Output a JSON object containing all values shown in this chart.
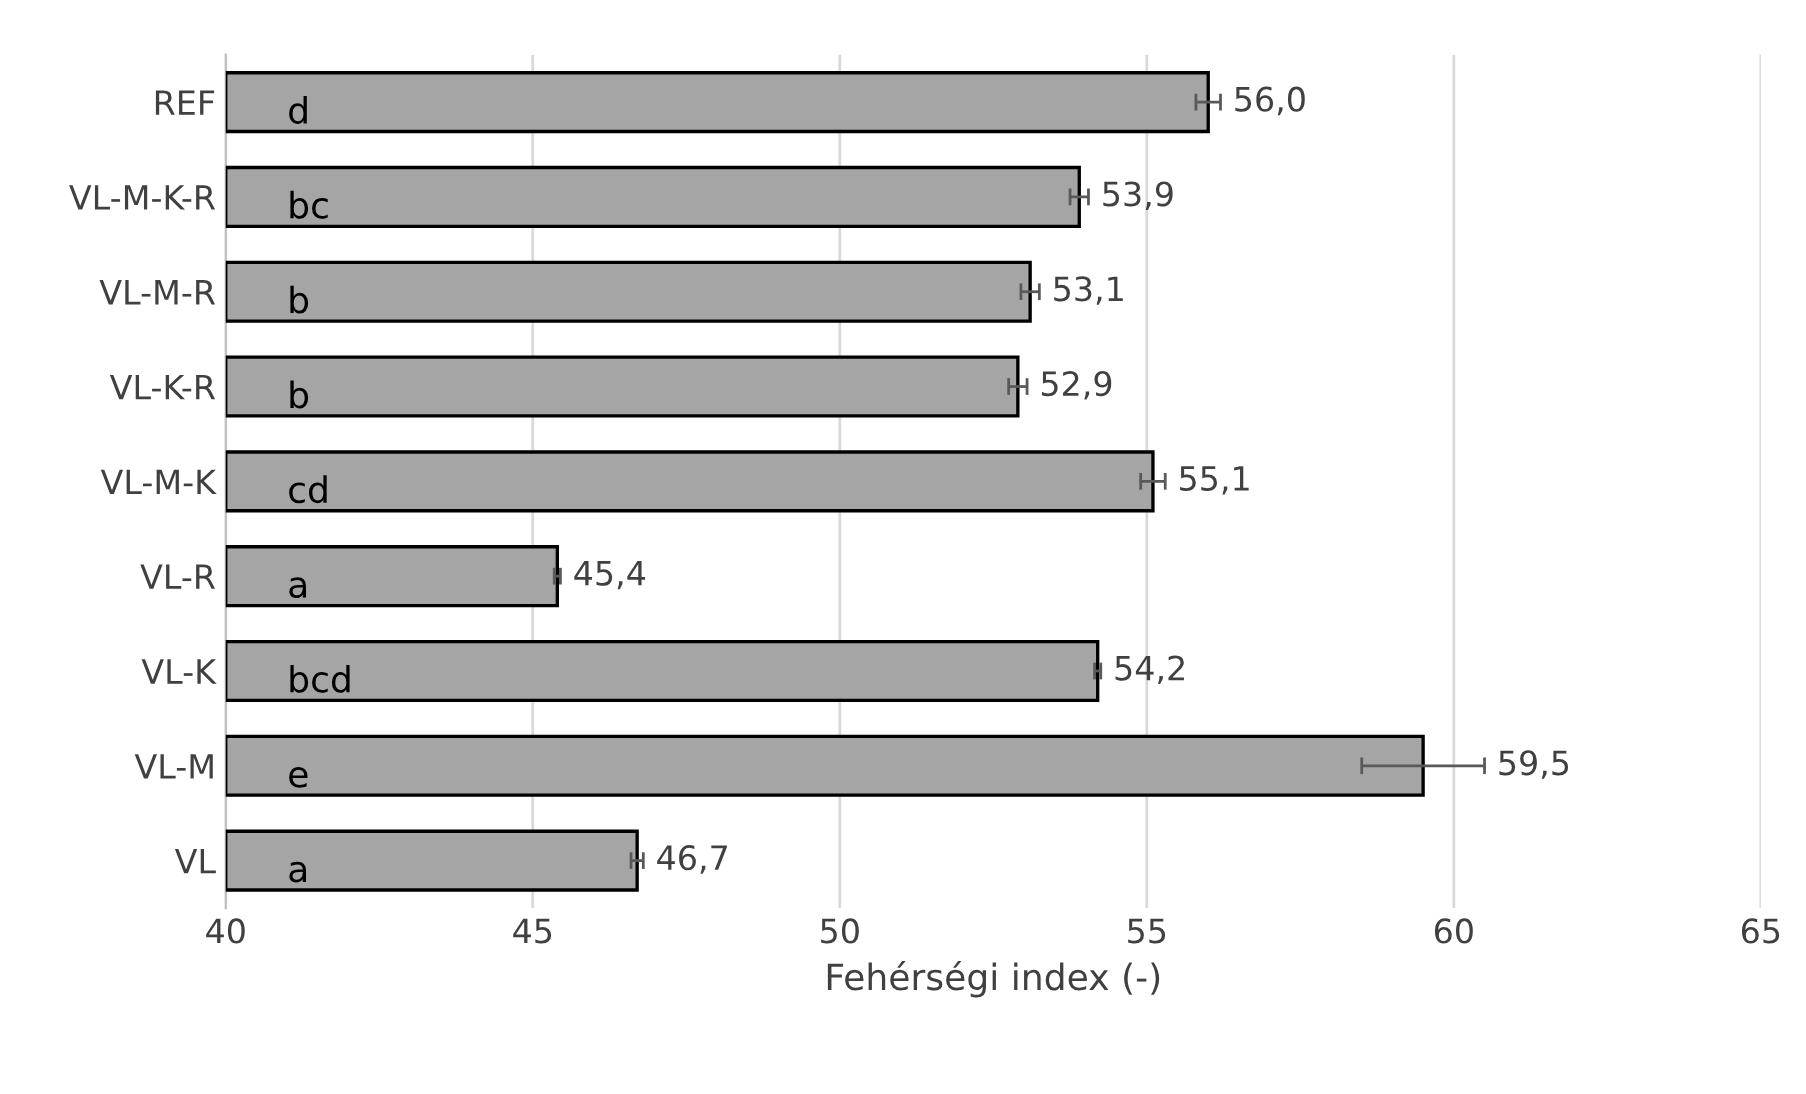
{
  "chart_data": {
    "type": "bar",
    "orientation": "horizontal",
    "xlabel": "Fehérségi index (-)",
    "categories": [
      "REF",
      "VL-M-K-R",
      "VL-M-R",
      "VL-K-R",
      "VL-M-K",
      "VL-R",
      "VL-K",
      "VL-M",
      "VL"
    ],
    "values": [
      56.0,
      53.9,
      53.1,
      52.9,
      55.1,
      45.4,
      54.2,
      59.5,
      46.7
    ],
    "errors": [
      0.2,
      0.15,
      0.15,
      0.15,
      0.2,
      0.05,
      0.05,
      1.0,
      0.1
    ],
    "value_labels": [
      "56,0",
      "53,9",
      "53,1",
      "52,9",
      "55,1",
      "45,4",
      "54,2",
      "59,5",
      "46,7"
    ],
    "color": "#a5a5a5",
    "xlim": [
      40,
      65
    ],
    "xticks": [
      40,
      45,
      50,
      55,
      60,
      65
    ],
    "grid": "x",
    "annotations": [
      "d",
      "bc",
      "b",
      "b",
      "cd",
      "a",
      "bcd",
      "e",
      "a"
    ]
  }
}
